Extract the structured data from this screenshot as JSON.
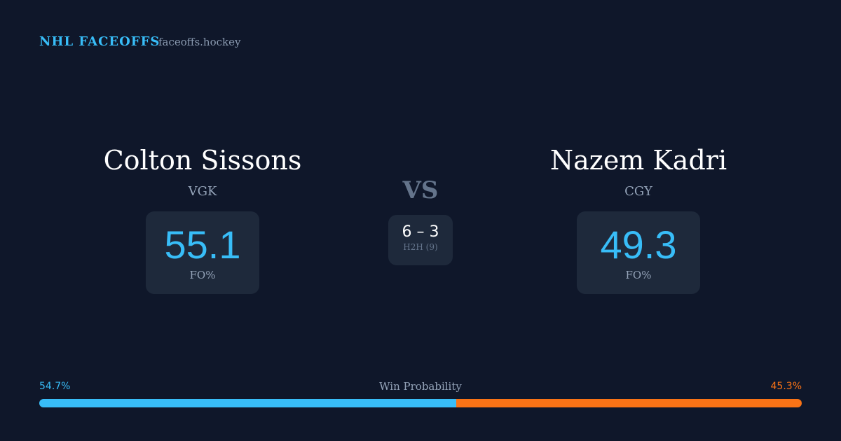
{
  "header": {
    "brand": "NHL FACEOFFS",
    "site": "faceoffs.hockey"
  },
  "players": [
    {
      "name": "Colton Sissons",
      "team": "VGK",
      "stat": 55.1,
      "stat_label": "FO%"
    },
    {
      "name": "Nazem Kadri",
      "team": "CGY",
      "stat": 49.3,
      "stat_label": "FO%"
    }
  ],
  "vs": "VS",
  "h2h": {
    "score": "6 – 3",
    "label": "H2H (9)"
  },
  "win_probability": {
    "title": "Win Probability",
    "values": [
      54.7,
      45.3
    ],
    "value_labels": [
      "54.7%",
      "45.3%"
    ],
    "colors": [
      "#38bdf8",
      "#f97316"
    ]
  }
}
